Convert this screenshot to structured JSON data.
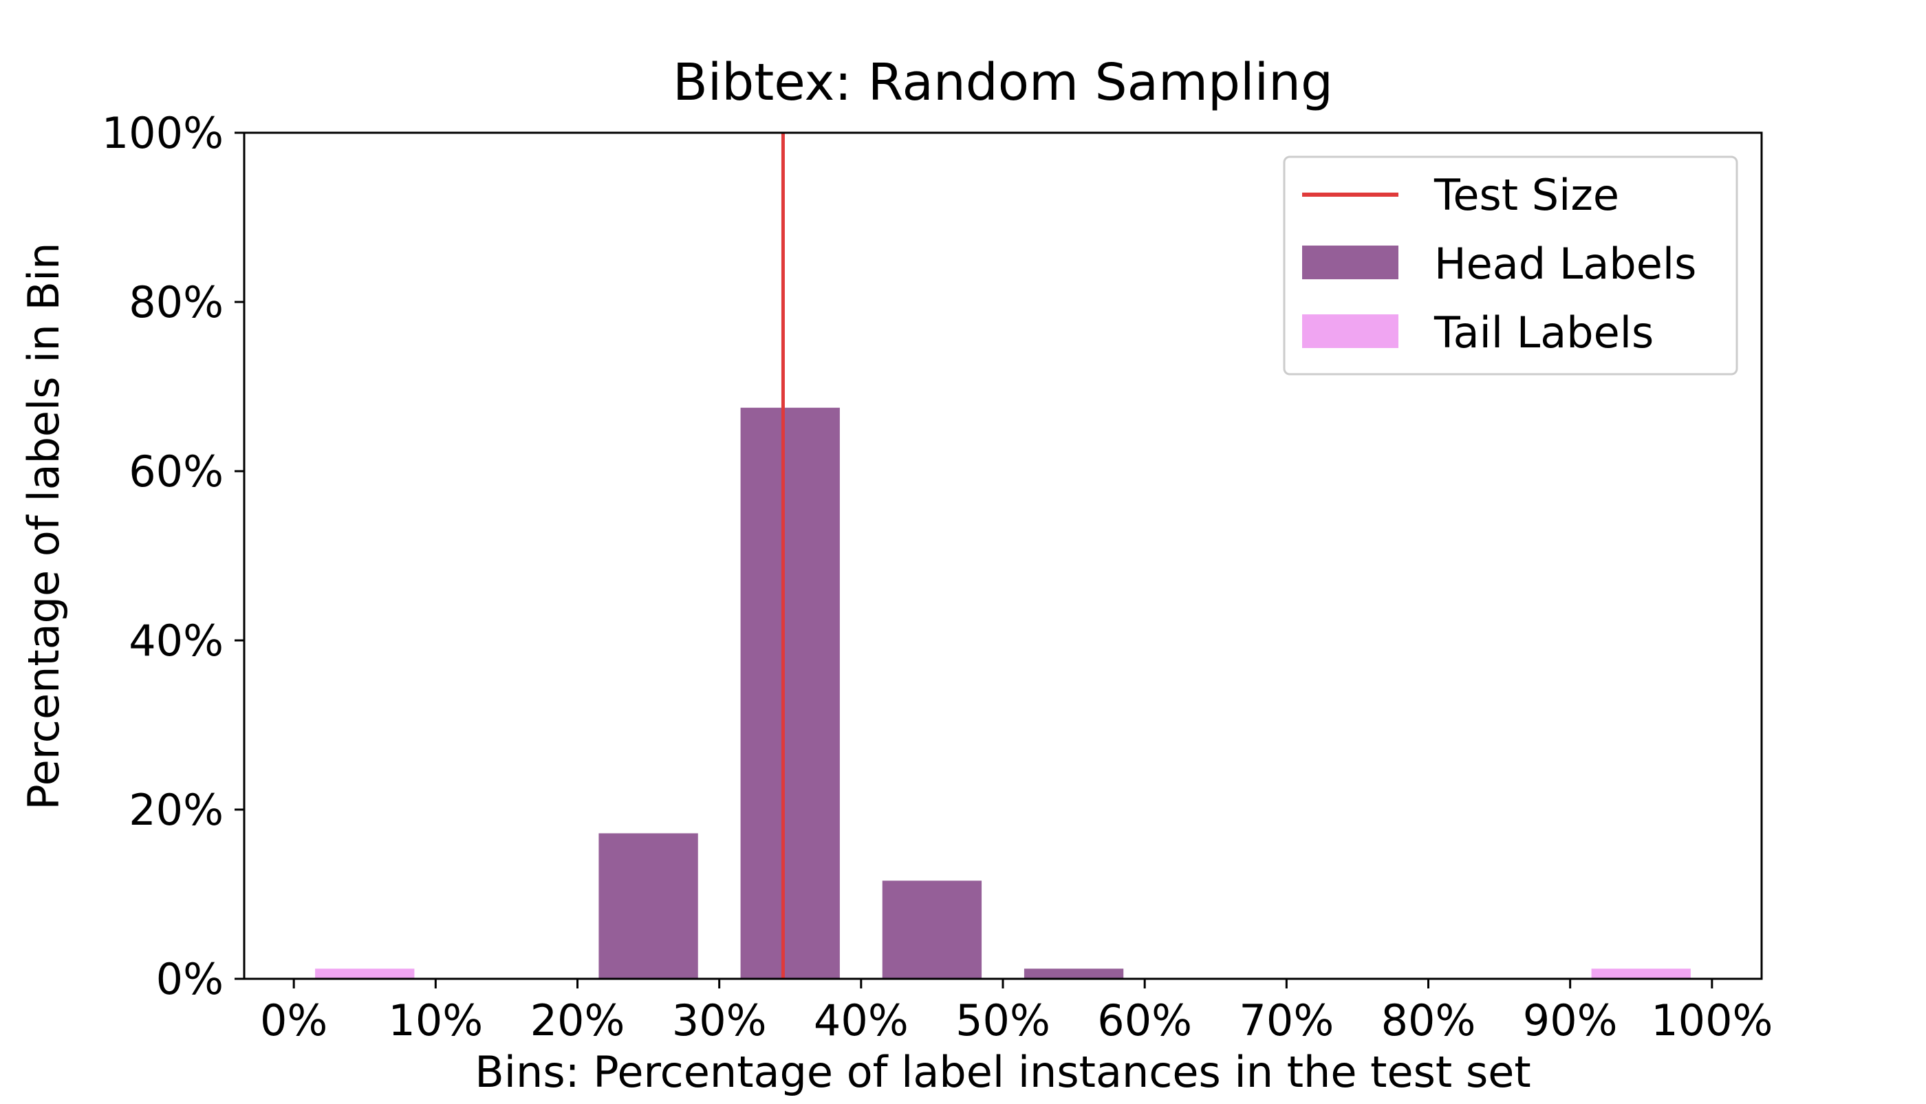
{
  "chart_data": {
    "type": "bar",
    "title": "Bibtex: Random Sampling",
    "xlabel": "Bins: Percentage of label instances in the test set",
    "ylabel": "Percentage of labels in Bin",
    "xlim": [
      -3.5,
      103.5
    ],
    "ylim": [
      0,
      100
    ],
    "x_ticks": [
      0,
      10,
      20,
      30,
      40,
      50,
      60,
      70,
      80,
      90,
      100
    ],
    "x_tick_labels": [
      "0%",
      "10%",
      "20%",
      "30%",
      "40%",
      "50%",
      "60%",
      "70%",
      "80%",
      "90%",
      "100%"
    ],
    "y_ticks": [
      0,
      20,
      40,
      60,
      80,
      100
    ],
    "y_tick_labels": [
      "0%",
      "20%",
      "40%",
      "60%",
      "80%",
      "100%"
    ],
    "grid": false,
    "legend_position": "top-right",
    "bin_width": 7,
    "series": [
      {
        "name": "Head Labels",
        "color": "#955f98",
        "bins": [
          {
            "center": 25,
            "value": 17.2
          },
          {
            "center": 35,
            "value": 67.5
          },
          {
            "center": 45,
            "value": 11.6
          },
          {
            "center": 55,
            "value": 1.2
          }
        ]
      },
      {
        "name": "Tail Labels",
        "color": "#f0a5f2",
        "bins": [
          {
            "center": 5,
            "value": 1.2
          },
          {
            "center": 95,
            "value": 1.2
          }
        ]
      }
    ],
    "reference_line": {
      "name": "Test Size",
      "x": 34.5,
      "color": "#e03a3a"
    }
  }
}
